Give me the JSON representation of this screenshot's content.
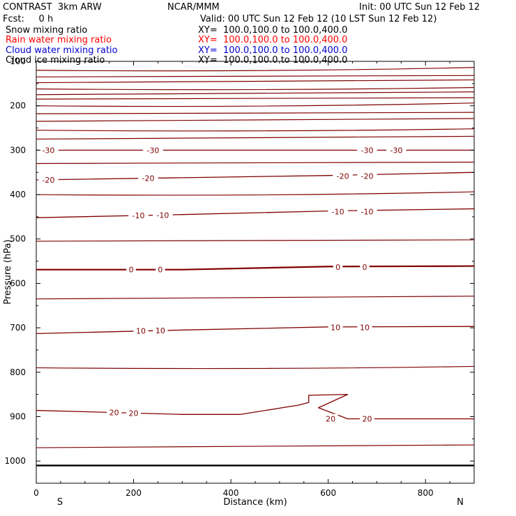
{
  "header": {
    "title_left": "CONTRAST  3km ARW",
    "title_center": "NCAR/MMM",
    "init": "Init: 00 UTC Sun 12 Feb 12",
    "fcst": "Fcst:     0 h",
    "valid": "Valid: 00 UTC Sun 12 Feb 12 (10 LST Sun 12 Feb 12)"
  },
  "fields": [
    {
      "name": "Snow mixing ratio",
      "xy": "XY=  100.0,100.0 to 100.0,400.0",
      "color": "#000000"
    },
    {
      "name": "Rain water mixing ratio",
      "xy": "XY=  100.0,100.0 to 100.0,400.0",
      "color": "#ff0000"
    },
    {
      "name": "Cloud water mixing ratio",
      "xy": "XY=  100.0,100.0 to 100.0,400.0",
      "color": "#0000cc"
    },
    {
      "name": "Cloud ice mixing ratio",
      "xy": "XY=  100.0,100.0 to 100.0,400.0",
      "color": "#000000"
    }
  ],
  "end_labels": {
    "left": "S",
    "right": "N"
  },
  "chart_data": {
    "type": "line",
    "xlabel": "Distance (km)",
    "ylabel": "Pressure (hPa)",
    "xlim": [
      0,
      900
    ],
    "ylim": [
      1050,
      100
    ],
    "x_ticks": [
      0,
      200,
      400,
      600,
      800
    ],
    "y_ticks": [
      100,
      200,
      300,
      400,
      500,
      600,
      700,
      800,
      900,
      1000
    ],
    "contour_color": "#800000",
    "isotherms": [
      {
        "label": "-30",
        "points": [
          [
            0,
            300
          ],
          [
            900,
            300
          ]
        ],
        "label_x": [
          25,
          240,
          680,
          740
        ]
      },
      {
        "label": "-20",
        "points": [
          [
            0,
            367
          ],
          [
            300,
            362
          ],
          [
            600,
            357
          ],
          [
            900,
            350
          ]
        ],
        "label_x": [
          25,
          230,
          630,
          680
        ]
      },
      {
        "label": "-10",
        "points": [
          [
            0,
            452
          ],
          [
            300,
            445
          ],
          [
            600,
            437
          ],
          [
            900,
            432
          ]
        ],
        "label_x": [
          210,
          260,
          620,
          680
        ]
      },
      {
        "label": "0",
        "points": [
          [
            0,
            569
          ],
          [
            300,
            569
          ],
          [
            600,
            562
          ],
          [
            900,
            561
          ]
        ],
        "label_x": [
          195,
          255,
          620,
          675
        ]
      },
      {
        "label": "10",
        "points": [
          [
            0,
            713
          ],
          [
            300,
            705
          ],
          [
            600,
            698
          ],
          [
            900,
            697
          ]
        ],
        "label_x": [
          215,
          255,
          615,
          675
        ]
      },
      {
        "label": "20",
        "points": [
          [
            0,
            886
          ],
          [
            300,
            895
          ],
          [
            420,
            895
          ],
          [
            540,
            874
          ],
          [
            560,
            868
          ],
          [
            560,
            852
          ],
          [
            640,
            850
          ],
          [
            580,
            880
          ],
          [
            640,
            905
          ],
          [
            900,
            905
          ]
        ],
        "label_x": [
          160,
          200,
          605,
          680
        ]
      }
    ],
    "unlabeled_lines_hpa": [
      120,
      135,
      148,
      162,
      175,
      185,
      200,
      218,
      235,
      255,
      275,
      330,
      400,
      505,
      635,
      790,
      970
    ],
    "surface_hpa": 1010
  }
}
